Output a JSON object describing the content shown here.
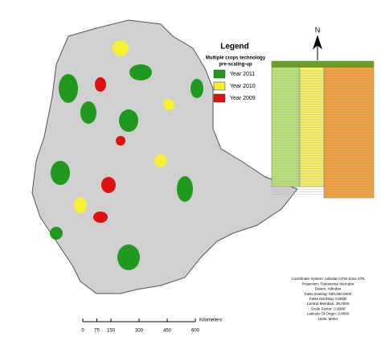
{
  "legend": {
    "title": "Legend",
    "subtitle_lines": [
      "Multiple crops technology",
      "pre-scaling-up"
    ],
    "items": [
      {
        "label": "Year 2011",
        "color": "#1f9a1f"
      },
      {
        "label": "Year  2010",
        "color": "#f5f032"
      },
      {
        "label": "Year 2009",
        "color": "#e01010"
      }
    ]
  },
  "north_arrow": {
    "label": "N"
  },
  "scale_bar": {
    "ticks": [
      0,
      75,
      150,
      300,
      450,
      600
    ],
    "unit": "Kilometers"
  },
  "projection_info": [
    "Coordinate System: Adindan UTM Zone 37N",
    "Projection: Transverse Mercator",
    "Datum: Adindan",
    "False Easting: 500,000.0000",
    "False Northing: 0.0000",
    "Central Meridian: 39.0000",
    "Scale Factor: 0.9996",
    "Latitude Of Origin: 0.0000",
    "Units: Meter"
  ]
}
